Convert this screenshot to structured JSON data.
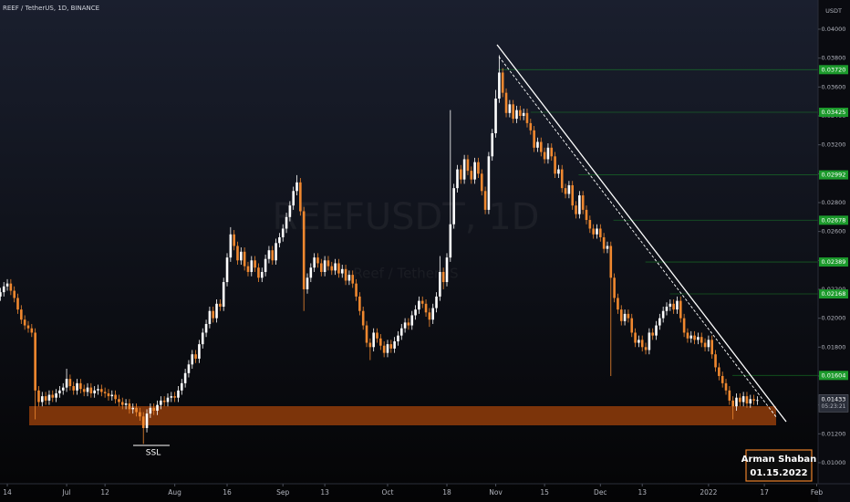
{
  "header": "REEF / TetherUS, 1D, BINANCE",
  "chart_data": {
    "type": "candlestick",
    "watermark": "REEFUSDT, 1D",
    "watermark_sub": "Reef / TetherUS",
    "unit": "USDT",
    "open": [
      0.0215,
      0.0218,
      0.0222,
      0.0224,
      0.0219,
      0.0214,
      0.0206,
      0.0199,
      0.0195,
      0.0193,
      0.019,
      0.015,
      0.0142,
      0.0146,
      0.0143,
      0.0147,
      0.0145,
      0.0148,
      0.015,
      0.0152,
      0.0158,
      0.0153,
      0.015,
      0.0155,
      0.0151,
      0.0149,
      0.0152,
      0.0148,
      0.015,
      0.0151,
      0.0149,
      0.0148,
      0.0146,
      0.0147,
      0.0144,
      0.0142,
      0.014,
      0.0141,
      0.0137,
      0.0138,
      0.0135,
      0.0132,
      0.0124,
      0.0134,
      0.0138,
      0.0136,
      0.014,
      0.0143,
      0.0142,
      0.0145,
      0.0146,
      0.0145,
      0.015,
      0.0155,
      0.0162,
      0.0168,
      0.0175,
      0.0172,
      0.0182,
      0.019,
      0.0196,
      0.0205,
      0.02,
      0.021,
      0.0208,
      0.0225,
      0.0242,
      0.0258,
      0.025,
      0.024,
      0.0246,
      0.0236,
      0.0232,
      0.024,
      0.0235,
      0.0228,
      0.0232,
      0.0241,
      0.0247,
      0.024,
      0.0252,
      0.0256,
      0.0262,
      0.027,
      0.0278,
      0.0288,
      0.0294,
      0.0274,
      0.022,
      0.0228,
      0.0235,
      0.0242,
      0.0238,
      0.0232,
      0.024,
      0.0236,
      0.0233,
      0.0238,
      0.0231,
      0.0234,
      0.0226,
      0.023,
      0.0224,
      0.0215,
      0.0205,
      0.0195,
      0.0183,
      0.018,
      0.019,
      0.0186,
      0.0181,
      0.0176,
      0.0182,
      0.0179,
      0.0184,
      0.0188,
      0.0193,
      0.0197,
      0.0195,
      0.0202,
      0.0206,
      0.0212,
      0.021,
      0.0204,
      0.0199,
      0.0207,
      0.0215,
      0.0232,
      0.0225,
      0.0242,
      0.0265,
      0.029,
      0.0303,
      0.0296,
      0.031,
      0.0302,
      0.0296,
      0.0308,
      0.03,
      0.0288,
      0.0275,
      0.0312,
      0.0328,
      0.0352,
      0.037,
      0.0356,
      0.0342,
      0.0348,
      0.0338,
      0.0344,
      0.034,
      0.0342,
      0.0335,
      0.033,
      0.0318,
      0.0322,
      0.0315,
      0.031,
      0.0318,
      0.0312,
      0.03,
      0.0303,
      0.029,
      0.0286,
      0.0292,
      0.0278,
      0.0272,
      0.0285,
      0.0275,
      0.0268,
      0.0262,
      0.0258,
      0.0262,
      0.0256,
      0.0248,
      0.025,
      0.0228,
      0.0214,
      0.0206,
      0.0198,
      0.0203,
      0.02,
      0.019,
      0.0183,
      0.0185,
      0.018,
      0.0178,
      0.019,
      0.0188,
      0.0195,
      0.02,
      0.0205,
      0.0208,
      0.021,
      0.0206,
      0.0212,
      0.02,
      0.019,
      0.0186,
      0.0188,
      0.0185,
      0.0187,
      0.0183,
      0.018,
      0.0185,
      0.0175,
      0.0166,
      0.016,
      0.0155,
      0.015,
      0.0143,
      0.0139,
      0.0145,
      0.0142,
      0.0146,
      0.0141,
      0.0144,
      0.0143
    ],
    "high": [
      0.0221,
      0.0225,
      0.0227,
      0.0227,
      0.0222,
      0.0217,
      0.0209,
      0.0202,
      0.0198,
      0.0196,
      0.0193,
      0.0153,
      0.0149,
      0.0149,
      0.015,
      0.015,
      0.0151,
      0.0153,
      0.0155,
      0.0165,
      0.0161,
      0.0156,
      0.0158,
      0.0158,
      0.0154,
      0.0155,
      0.0155,
      0.0153,
      0.0154,
      0.0154,
      0.0152,
      0.0151,
      0.015,
      0.015,
      0.0147,
      0.0145,
      0.0144,
      0.0144,
      0.0141,
      0.0141,
      0.0138,
      0.0135,
      0.0137,
      0.0141,
      0.0141,
      0.0143,
      0.0146,
      0.0146,
      0.0148,
      0.0149,
      0.0149,
      0.0153,
      0.0158,
      0.0165,
      0.0171,
      0.0178,
      0.0178,
      0.0185,
      0.0193,
      0.0199,
      0.0208,
      0.0208,
      0.0213,
      0.0213,
      0.0228,
      0.0245,
      0.0263,
      0.0261,
      0.0253,
      0.0249,
      0.0249,
      0.0239,
      0.0243,
      0.0243,
      0.0238,
      0.0235,
      0.0244,
      0.025,
      0.025,
      0.0255,
      0.0259,
      0.0265,
      0.0273,
      0.0281,
      0.0291,
      0.0299,
      0.0297,
      0.0277,
      0.0231,
      0.0238,
      0.0245,
      0.0245,
      0.0241,
      0.0243,
      0.0243,
      0.0239,
      0.0241,
      0.0241,
      0.0237,
      0.0237,
      0.0233,
      0.0233,
      0.0227,
      0.0218,
      0.0208,
      0.0198,
      0.0186,
      0.0193,
      0.0193,
      0.0189,
      0.0184,
      0.0185,
      0.0185,
      0.0187,
      0.0191,
      0.0196,
      0.02,
      0.02,
      0.0205,
      0.0209,
      0.0215,
      0.0215,
      0.0213,
      0.0207,
      0.021,
      0.0218,
      0.0243,
      0.0235,
      0.0245,
      0.0344,
      0.0293,
      0.0306,
      0.0306,
      0.0313,
      0.0313,
      0.0305,
      0.0311,
      0.0311,
      0.0303,
      0.0291,
      0.0315,
      0.0331,
      0.0358,
      0.0382,
      0.0373,
      0.0359,
      0.0351,
      0.0351,
      0.0347,
      0.0347,
      0.0345,
      0.0345,
      0.0338,
      0.0333,
      0.0325,
      0.0325,
      0.0318,
      0.0321,
      0.0321,
      0.0315,
      0.0306,
      0.0306,
      0.0293,
      0.0295,
      0.0295,
      0.0281,
      0.0288,
      0.0288,
      0.0278,
      0.0271,
      0.0265,
      0.0265,
      0.0265,
      0.0259,
      0.0253,
      0.0253,
      0.0231,
      0.0217,
      0.0209,
      0.0206,
      0.0206,
      0.0203,
      0.0193,
      0.0188,
      0.0188,
      0.0183,
      0.0193,
      0.0193,
      0.0198,
      0.0203,
      0.0208,
      0.0211,
      0.0213,
      0.0213,
      0.0215,
      0.0215,
      0.0203,
      0.0193,
      0.0191,
      0.0191,
      0.019,
      0.019,
      0.0186,
      0.0188,
      0.0188,
      0.0178,
      0.0169,
      0.0163,
      0.0158,
      0.0153,
      0.0146,
      0.0148,
      0.0148,
      0.0149,
      0.0149,
      0.0147,
      0.0147,
      0.0146
    ],
    "low": [
      0.0212,
      0.0215,
      0.0219,
      0.0216,
      0.0211,
      0.0203,
      0.0196,
      0.0192,
      0.019,
      0.0187,
      0.013,
      0.0139,
      0.0139,
      0.014,
      0.014,
      0.0142,
      0.0142,
      0.0145,
      0.0147,
      0.0149,
      0.015,
      0.0147,
      0.0147,
      0.0148,
      0.0146,
      0.0146,
      0.0145,
      0.0145,
      0.0147,
      0.0146,
      0.0145,
      0.0143,
      0.0143,
      0.0141,
      0.0139,
      0.0137,
      0.0137,
      0.0134,
      0.0134,
      0.0132,
      0.0129,
      0.0113,
      0.0121,
      0.0131,
      0.0133,
      0.0133,
      0.0137,
      0.0139,
      0.0139,
      0.0142,
      0.0142,
      0.0142,
      0.0147,
      0.0152,
      0.0159,
      0.0165,
      0.0169,
      0.0169,
      0.0179,
      0.0187,
      0.0193,
      0.0197,
      0.0197,
      0.0205,
      0.0205,
      0.0222,
      0.0239,
      0.0247,
      0.0237,
      0.0237,
      0.0233,
      0.0229,
      0.0229,
      0.0232,
      0.0225,
      0.0225,
      0.0229,
      0.0238,
      0.0237,
      0.0237,
      0.0249,
      0.0253,
      0.0259,
      0.0267,
      0.0275,
      0.0285,
      0.0271,
      0.0205,
      0.0217,
      0.0225,
      0.0232,
      0.0235,
      0.0229,
      0.0229,
      0.0233,
      0.023,
      0.023,
      0.0228,
      0.0228,
      0.0223,
      0.0223,
      0.0221,
      0.0212,
      0.0202,
      0.0192,
      0.018,
      0.0171,
      0.0177,
      0.0183,
      0.0178,
      0.0173,
      0.0173,
      0.0176,
      0.0176,
      0.0181,
      0.0185,
      0.019,
      0.0192,
      0.0192,
      0.0199,
      0.0203,
      0.0207,
      0.0201,
      0.0194,
      0.0196,
      0.0204,
      0.0212,
      0.022,
      0.0222,
      0.0239,
      0.0262,
      0.0287,
      0.0293,
      0.0293,
      0.0299,
      0.0293,
      0.0293,
      0.0297,
      0.0285,
      0.0272,
      0.0272,
      0.0309,
      0.0325,
      0.0349,
      0.0353,
      0.0339,
      0.0339,
      0.0335,
      0.0335,
      0.0337,
      0.0337,
      0.0332,
      0.0327,
      0.0315,
      0.0315,
      0.0312,
      0.0307,
      0.0307,
      0.0309,
      0.0297,
      0.0297,
      0.0287,
      0.0283,
      0.0283,
      0.0275,
      0.0269,
      0.0269,
      0.0272,
      0.0265,
      0.0259,
      0.0255,
      0.0255,
      0.0253,
      0.0245,
      0.0245,
      0.016,
      0.0211,
      0.0203,
      0.0195,
      0.0195,
      0.0197,
      0.0187,
      0.018,
      0.018,
      0.0177,
      0.0175,
      0.0175,
      0.0185,
      0.0185,
      0.0192,
      0.0197,
      0.0202,
      0.0205,
      0.0203,
      0.0203,
      0.0197,
      0.0187,
      0.0183,
      0.0183,
      0.0182,
      0.0182,
      0.018,
      0.0177,
      0.0177,
      0.0172,
      0.0163,
      0.0157,
      0.0152,
      0.0147,
      0.014,
      0.013,
      0.0136,
      0.0139,
      0.0139,
      0.0138,
      0.0138,
      0.014,
      0.014
    ],
    "close": [
      0.0218,
      0.0222,
      0.0224,
      0.0219,
      0.0214,
      0.0206,
      0.0199,
      0.0195,
      0.0193,
      0.019,
      0.015,
      0.0142,
      0.0146,
      0.0143,
      0.0147,
      0.0145,
      0.0148,
      0.015,
      0.0152,
      0.0158,
      0.0153,
      0.015,
      0.0155,
      0.0151,
      0.0149,
      0.0152,
      0.0148,
      0.015,
      0.0151,
      0.0149,
      0.0148,
      0.0146,
      0.0147,
      0.0144,
      0.0142,
      0.014,
      0.0141,
      0.0137,
      0.0138,
      0.0135,
      0.0132,
      0.0124,
      0.0134,
      0.0138,
      0.0136,
      0.014,
      0.0143,
      0.0142,
      0.0145,
      0.0146,
      0.0145,
      0.015,
      0.0155,
      0.0162,
      0.0168,
      0.0175,
      0.0172,
      0.0182,
      0.019,
      0.0196,
      0.0205,
      0.02,
      0.021,
      0.0208,
      0.0225,
      0.0242,
      0.0258,
      0.025,
      0.024,
      0.0246,
      0.0236,
      0.0232,
      0.024,
      0.0235,
      0.0228,
      0.0232,
      0.0241,
      0.0247,
      0.024,
      0.0252,
      0.0256,
      0.0262,
      0.027,
      0.0278,
      0.0288,
      0.0294,
      0.0274,
      0.022,
      0.0228,
      0.0235,
      0.0242,
      0.0238,
      0.0232,
      0.024,
      0.0236,
      0.0233,
      0.0238,
      0.0231,
      0.0234,
      0.0226,
      0.023,
      0.0224,
      0.0215,
      0.0205,
      0.0195,
      0.0183,
      0.018,
      0.019,
      0.0186,
      0.0181,
      0.0176,
      0.0182,
      0.0179,
      0.0184,
      0.0188,
      0.0193,
      0.0197,
      0.0195,
      0.0202,
      0.0206,
      0.0212,
      0.021,
      0.0204,
      0.0199,
      0.0207,
      0.0215,
      0.0232,
      0.0225,
      0.0242,
      0.0265,
      0.029,
      0.0303,
      0.0296,
      0.031,
      0.0302,
      0.0296,
      0.0308,
      0.03,
      0.0288,
      0.0275,
      0.0312,
      0.0328,
      0.0352,
      0.037,
      0.0356,
      0.0342,
      0.0348,
      0.0338,
      0.0344,
      0.034,
      0.0342,
      0.0335,
      0.033,
      0.0318,
      0.0322,
      0.0315,
      0.031,
      0.0318,
      0.0312,
      0.03,
      0.0303,
      0.029,
      0.0286,
      0.0292,
      0.0278,
      0.0272,
      0.0285,
      0.0275,
      0.0268,
      0.0262,
      0.0258,
      0.0262,
      0.0256,
      0.0248,
      0.025,
      0.0228,
      0.0214,
      0.0206,
      0.0198,
      0.0203,
      0.02,
      0.019,
      0.0183,
      0.0185,
      0.018,
      0.0178,
      0.019,
      0.0188,
      0.0195,
      0.02,
      0.0205,
      0.0208,
      0.021,
      0.0206,
      0.0212,
      0.02,
      0.019,
      0.0186,
      0.0188,
      0.0185,
      0.0187,
      0.0183,
      0.018,
      0.0185,
      0.0175,
      0.0166,
      0.016,
      0.0155,
      0.015,
      0.0143,
      0.0139,
      0.0145,
      0.0142,
      0.0146,
      0.0141,
      0.0144,
      0.0143,
      0.01433
    ],
    "up_color": "#ffffff",
    "down_color": "#f0882f",
    "xlim": [
      -0.1,
      234.4
    ],
    "xticks": [
      {
        "value": 2,
        "label": "14"
      },
      {
        "value": 19,
        "label": "Jul"
      },
      {
        "value": 30,
        "label": "12"
      },
      {
        "value": 50,
        "label": "Aug"
      },
      {
        "value": 65,
        "label": "16"
      },
      {
        "value": 81,
        "label": "Sep"
      },
      {
        "value": 93,
        "label": "13"
      },
      {
        "value": 111,
        "label": "Oct"
      },
      {
        "value": 128,
        "label": "18"
      },
      {
        "value": 142,
        "label": "Nov"
      },
      {
        "value": 156,
        "label": "15"
      },
      {
        "value": 172,
        "label": "Dec"
      },
      {
        "value": 184,
        "label": "13"
      },
      {
        "value": 203,
        "label": "2022"
      },
      {
        "value": 219,
        "label": "17"
      },
      {
        "value": 234,
        "label": "Feb"
      }
    ],
    "ylim": [
      0.00886,
      0.04202
    ],
    "yticks": [
      {
        "value": 0.01,
        "label": "0.01000"
      },
      {
        "value": 0.012,
        "label": "0.01200"
      },
      {
        "value": 0.014,
        "label": "0.01400"
      },
      {
        "value": 0.016,
        "label": "0.01600"
      },
      {
        "value": 0.018,
        "label": "0.01800"
      },
      {
        "value": 0.02,
        "label": "0.02000"
      },
      {
        "value": 0.022,
        "label": "0.02200"
      },
      {
        "value": 0.024,
        "label": "0.02400"
      },
      {
        "value": 0.026,
        "label": "0.02600"
      },
      {
        "value": 0.028,
        "label": "0.02800"
      },
      {
        "value": 0.03,
        "label": "0.03000"
      },
      {
        "value": 0.032,
        "label": "0.03200"
      },
      {
        "value": 0.034,
        "label": "0.03400"
      },
      {
        "value": 0.036,
        "label": "0.03600"
      },
      {
        "value": 0.038,
        "label": "0.03800"
      },
      {
        "value": 0.04,
        "label": "0.04000"
      }
    ],
    "levels": [
      {
        "value": 0.0372,
        "label": "0.03720"
      },
      {
        "value": 0.03425,
        "label": "0.03425"
      },
      {
        "value": 0.02992,
        "label": "0.02992"
      },
      {
        "value": 0.02678,
        "label": "0.02678"
      },
      {
        "value": 0.02389,
        "label": "0.02389"
      },
      {
        "value": 0.02168,
        "label": "0.02168"
      },
      {
        "value": 0.01604,
        "label": "0.01604"
      }
    ],
    "level_color": "#1c9a2c",
    "last_price": {
      "value": 0.01433,
      "label": "0.01433"
    },
    "countdown": "05:23:21",
    "annotation": "SSL"
  },
  "signature": {
    "name": "Arman Shaban",
    "date": "01.15.2022"
  }
}
